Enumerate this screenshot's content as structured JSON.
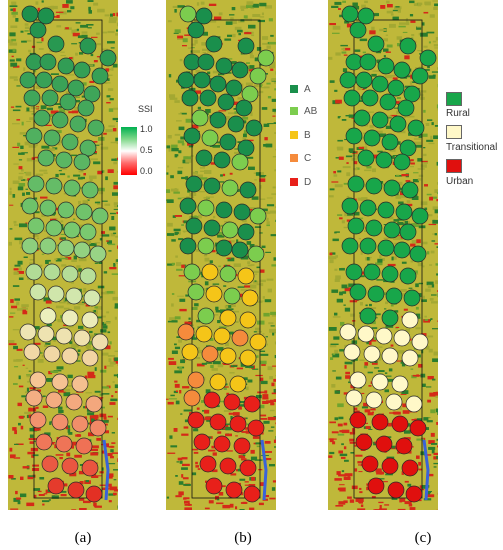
{
  "panels": [
    {
      "caption": "(a)"
    },
    {
      "caption": "(b)"
    },
    {
      "caption": "(c)"
    }
  ],
  "legend_ssi": {
    "title": "SSI",
    "ticks": [
      "1.0",
      "0.5",
      "0.0"
    ],
    "colors": {
      "high": "#00b050",
      "mid": "#ffffff",
      "low": "#ff0000"
    }
  },
  "legend_b": [
    {
      "label": "A",
      "color": "#1a8f4c"
    },
    {
      "label": "AB",
      "color": "#7ccd4e"
    },
    {
      "label": "B",
      "color": "#f5c518"
    },
    {
      "label": "C",
      "color": "#f58b3c"
    },
    {
      "label": "D",
      "color": "#e8201a"
    }
  ],
  "legend_c": [
    {
      "label": "Rural",
      "color": "#18a64a"
    },
    {
      "label": "Transitional",
      "color": "#fff8c8"
    },
    {
      "label": "Urban",
      "color": "#e0100e"
    }
  ]
}
